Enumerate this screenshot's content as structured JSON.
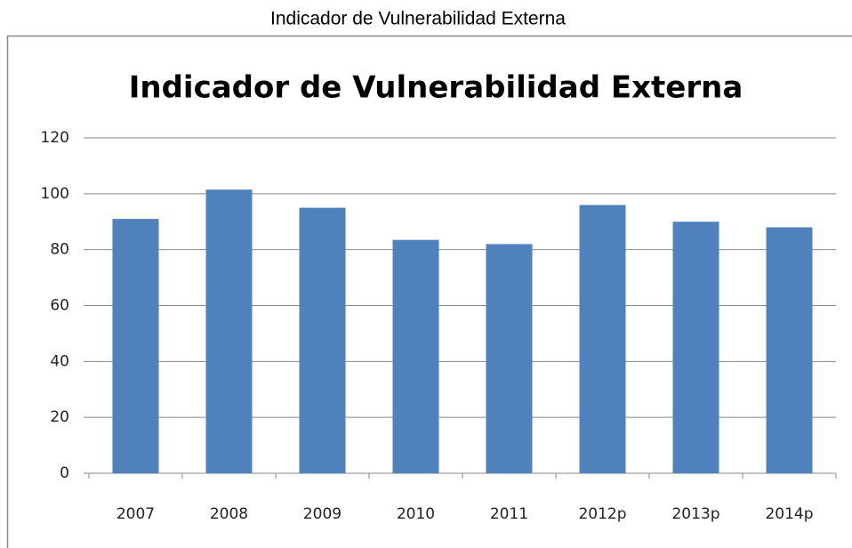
{
  "caption": "Indicador de Vulnerabilidad Externa",
  "chart_data": {
    "type": "bar",
    "title": "Indicador de Vulnerabilidad Externa",
    "categories": [
      "2007",
      "2008",
      "2009",
      "2010",
      "2011",
      "2012p",
      "2013p",
      "2014p"
    ],
    "values": [
      91,
      101.5,
      95,
      83.5,
      82,
      96,
      90,
      88
    ],
    "color": "#4f81bd",
    "ylim": [
      0,
      120
    ],
    "yticks": [
      0,
      20,
      40,
      60,
      80,
      100,
      120
    ],
    "grid": true
  }
}
